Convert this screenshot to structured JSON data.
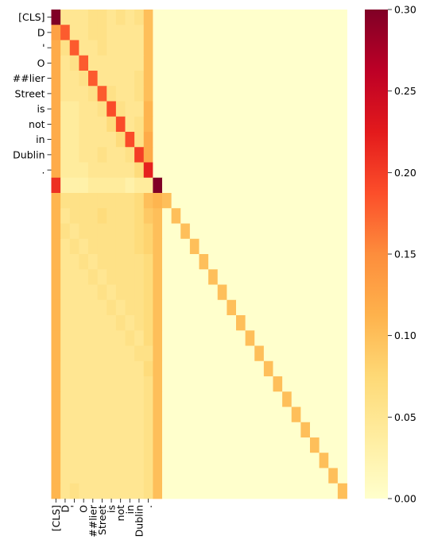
{
  "chart_data": {
    "type": "heatmap",
    "title": "",
    "xlabel": "",
    "ylabel": "",
    "labels": [
      "[CLS]",
      "D",
      "'",
      "O",
      "##lier",
      "Street",
      "is",
      "not",
      "in",
      "Dublin",
      "."
    ],
    "n_rows": 32,
    "n_cols": 32,
    "colorscale": "YlOrRd",
    "colorbar": {
      "min": 0.0,
      "max": 0.3,
      "ticks": [
        0.0,
        0.05,
        0.1,
        0.15,
        0.2,
        0.25,
        0.3
      ],
      "tick_labels": [
        "0.00",
        "0.05",
        "0.10",
        "0.15",
        "0.20",
        "0.25",
        "0.30"
      ]
    },
    "token_rows": [
      [
        0.3,
        0.05,
        0.05,
        0.05,
        0.06,
        0.06,
        0.05,
        0.06,
        0.05,
        0.06,
        0.1
      ],
      [
        0.13,
        0.18,
        0.05,
        0.05,
        0.06,
        0.06,
        0.05,
        0.05,
        0.05,
        0.05,
        0.1
      ],
      [
        0.12,
        0.06,
        0.18,
        0.05,
        0.05,
        0.06,
        0.05,
        0.05,
        0.05,
        0.05,
        0.1
      ],
      [
        0.12,
        0.05,
        0.06,
        0.18,
        0.05,
        0.05,
        0.05,
        0.05,
        0.05,
        0.05,
        0.1
      ],
      [
        0.12,
        0.05,
        0.05,
        0.06,
        0.18,
        0.05,
        0.05,
        0.05,
        0.05,
        0.06,
        0.1
      ],
      [
        0.12,
        0.05,
        0.05,
        0.05,
        0.06,
        0.18,
        0.06,
        0.05,
        0.05,
        0.06,
        0.1
      ],
      [
        0.12,
        0.04,
        0.04,
        0.05,
        0.05,
        0.06,
        0.19,
        0.06,
        0.05,
        0.05,
        0.11
      ],
      [
        0.12,
        0.04,
        0.04,
        0.05,
        0.05,
        0.05,
        0.07,
        0.19,
        0.05,
        0.06,
        0.11
      ],
      [
        0.12,
        0.04,
        0.04,
        0.05,
        0.05,
        0.05,
        0.05,
        0.07,
        0.19,
        0.06,
        0.12
      ],
      [
        0.12,
        0.04,
        0.04,
        0.05,
        0.05,
        0.06,
        0.05,
        0.05,
        0.06,
        0.2,
        0.12
      ],
      [
        0.12,
        0.04,
        0.04,
        0.04,
        0.05,
        0.05,
        0.05,
        0.05,
        0.05,
        0.07,
        0.22
      ]
    ],
    "trailing_rows": [
      [
        0.21,
        0.03,
        0.03,
        0.03,
        0.04,
        0.04,
        0.04,
        0.04,
        0.03,
        0.04,
        0.04,
        0.3
      ],
      [
        0.11,
        0.06,
        0.06,
        0.06,
        0.06,
        0.06,
        0.06,
        0.06,
        0.06,
        0.07,
        0.1,
        0.11,
        0.1
      ],
      [
        0.11,
        0.05,
        0.06,
        0.06,
        0.06,
        0.07,
        0.06,
        0.06,
        0.06,
        0.07,
        0.09,
        0.1
      ],
      [
        0.11,
        0.06,
        0.05,
        0.06,
        0.06,
        0.06,
        0.06,
        0.06,
        0.06,
        0.07,
        0.08,
        0.1
      ],
      [
        0.11,
        0.05,
        0.06,
        0.05,
        0.06,
        0.06,
        0.06,
        0.06,
        0.06,
        0.07,
        0.08,
        0.1
      ],
      [
        0.11,
        0.05,
        0.05,
        0.06,
        0.05,
        0.06,
        0.06,
        0.06,
        0.06,
        0.06,
        0.07,
        0.1
      ],
      [
        0.11,
        0.05,
        0.05,
        0.05,
        0.06,
        0.05,
        0.06,
        0.06,
        0.06,
        0.06,
        0.07,
        0.1
      ],
      [
        0.11,
        0.05,
        0.05,
        0.05,
        0.05,
        0.06,
        0.05,
        0.06,
        0.06,
        0.06,
        0.07,
        0.1
      ],
      [
        0.11,
        0.05,
        0.05,
        0.05,
        0.05,
        0.05,
        0.06,
        0.05,
        0.06,
        0.06,
        0.07,
        0.1
      ],
      [
        0.11,
        0.05,
        0.05,
        0.05,
        0.05,
        0.05,
        0.05,
        0.06,
        0.05,
        0.06,
        0.07,
        0.1
      ],
      [
        0.11,
        0.05,
        0.05,
        0.05,
        0.05,
        0.05,
        0.05,
        0.05,
        0.06,
        0.05,
        0.07,
        0.1
      ],
      [
        0.11,
        0.05,
        0.05,
        0.05,
        0.05,
        0.05,
        0.05,
        0.05,
        0.05,
        0.06,
        0.06,
        0.1
      ],
      [
        0.11,
        0.05,
        0.05,
        0.05,
        0.05,
        0.05,
        0.05,
        0.05,
        0.05,
        0.05,
        0.07,
        0.1
      ],
      [
        0.11,
        0.05,
        0.05,
        0.05,
        0.05,
        0.05,
        0.05,
        0.05,
        0.05,
        0.05,
        0.06,
        0.1
      ],
      [
        0.11,
        0.05,
        0.05,
        0.05,
        0.05,
        0.05,
        0.05,
        0.05,
        0.05,
        0.05,
        0.06,
        0.1
      ],
      [
        0.11,
        0.05,
        0.05,
        0.05,
        0.05,
        0.05,
        0.05,
        0.05,
        0.05,
        0.05,
        0.06,
        0.1
      ],
      [
        0.11,
        0.05,
        0.05,
        0.05,
        0.05,
        0.05,
        0.05,
        0.05,
        0.05,
        0.05,
        0.06,
        0.1
      ],
      [
        0.11,
        0.05,
        0.05,
        0.05,
        0.05,
        0.05,
        0.05,
        0.05,
        0.05,
        0.05,
        0.06,
        0.1
      ],
      [
        0.11,
        0.05,
        0.05,
        0.05,
        0.05,
        0.05,
        0.05,
        0.05,
        0.05,
        0.05,
        0.06,
        0.1
      ],
      [
        0.11,
        0.05,
        0.05,
        0.05,
        0.05,
        0.05,
        0.05,
        0.05,
        0.05,
        0.05,
        0.06,
        0.1
      ],
      [
        0.11,
        0.05,
        0.06,
        0.05,
        0.05,
        0.05,
        0.05,
        0.05,
        0.05,
        0.05,
        0.06,
        0.1
      ]
    ],
    "diagonal_value": 0.1
  }
}
